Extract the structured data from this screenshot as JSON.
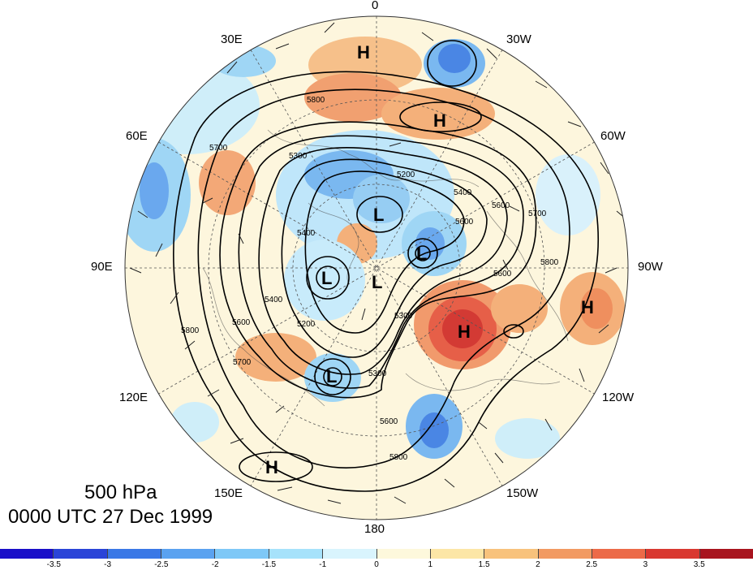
{
  "map": {
    "longitude_labels": [
      "0",
      "30W",
      "60W",
      "90W",
      "120W",
      "150W",
      "180",
      "150E",
      "120E",
      "90E",
      "60E",
      "30E"
    ],
    "pressure_systems": [
      {
        "type": "H",
        "label": "H"
      },
      {
        "type": "H",
        "label": "H"
      },
      {
        "type": "H",
        "label": "H"
      },
      {
        "type": "H",
        "label": "H"
      },
      {
        "type": "H",
        "label": "H"
      },
      {
        "type": "L",
        "label": "L"
      },
      {
        "type": "L",
        "label": "L"
      },
      {
        "type": "L",
        "label": "L"
      },
      {
        "type": "L",
        "label": "L"
      },
      {
        "type": "L",
        "label": "L"
      }
    ],
    "contour_labels": [
      "5800",
      "5700",
      "5300",
      "5200",
      "5400",
      "5600",
      "5700",
      "5600",
      "5400",
      "5800",
      "5400",
      "5600",
      "5800",
      "5600",
      "5700",
      "5300",
      "5300",
      "5200",
      "5600",
      "5800"
    ]
  },
  "caption": {
    "level": "500 hPa",
    "time": "0000 UTC 27 Dec 1999"
  },
  "colorbar": {
    "colors": [
      "#1a0fc9",
      "#2a44d8",
      "#3a78e6",
      "#5aa2f0",
      "#7ec8f7",
      "#a6e2fb",
      "#d9f4fd",
      "#fdf8dc",
      "#fce6a6",
      "#f8c27c",
      "#f29a62",
      "#ec6a48",
      "#d93830",
      "#a8141e"
    ],
    "tick_labels": [
      "-3.5",
      "-3",
      "-2.5",
      "-2",
      "-1.5",
      "-1",
      "0",
      "1",
      "1.5",
      "2",
      "2.5",
      "3",
      "3.5"
    ]
  }
}
